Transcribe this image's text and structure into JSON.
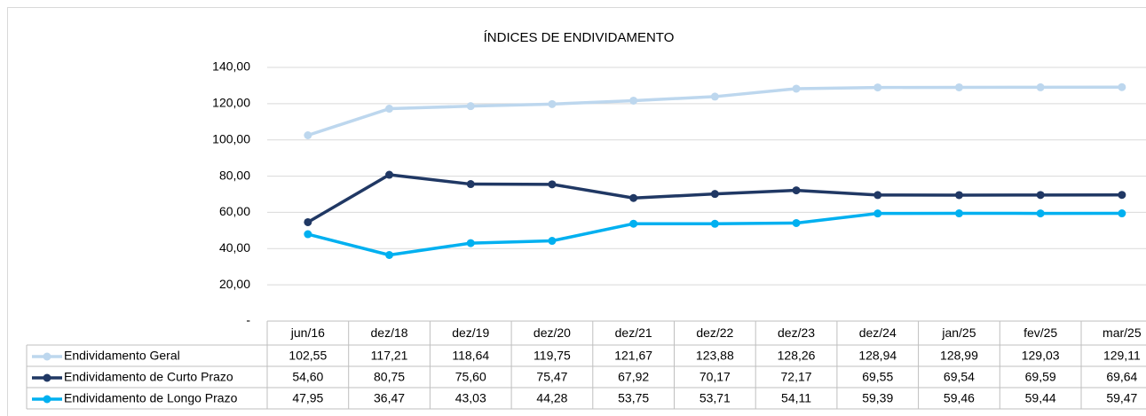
{
  "chart_data": {
    "type": "line",
    "title": "ÍNDICES DE ENDIVIDAMENTO",
    "categories": [
      "jun/16",
      "dez/18",
      "dez/19",
      "dez/20",
      "dez/21",
      "dez/22",
      "dez/23",
      "dez/24",
      "jan/25",
      "fev/25",
      "mar/25"
    ],
    "series": [
      {
        "name": "Endividamento Geral",
        "color": "#bdd7ee",
        "values": [
          102.55,
          117.21,
          118.64,
          119.75,
          121.67,
          123.88,
          128.26,
          128.94,
          128.99,
          129.03,
          129.11
        ],
        "value_labels": [
          "102,55",
          "117,21",
          "118,64",
          "119,75",
          "121,67",
          "123,88",
          "128,26",
          "128,94",
          "128,99",
          "129,03",
          "129,11"
        ]
      },
      {
        "name": "Endividamento de Curto Prazo",
        "color": "#203864",
        "values": [
          54.6,
          80.75,
          75.6,
          75.47,
          67.92,
          70.17,
          72.17,
          69.55,
          69.54,
          69.59,
          69.64
        ],
        "value_labels": [
          "54,60",
          "80,75",
          "75,60",
          "75,47",
          "67,92",
          "70,17",
          "72,17",
          "69,55",
          "69,54",
          "69,59",
          "69,64"
        ]
      },
      {
        "name": "Endividamento de Longo Prazo",
        "color": "#00b0f0",
        "values": [
          47.95,
          36.47,
          43.03,
          44.28,
          53.75,
          53.71,
          54.11,
          59.39,
          59.46,
          59.44,
          59.47
        ],
        "value_labels": [
          "47,95",
          "36,47",
          "43,03",
          "44,28",
          "53,75",
          "53,71",
          "54,11",
          "59,39",
          "59,46",
          "59,44",
          "59,47"
        ]
      }
    ],
    "ylim": [
      0,
      140
    ],
    "yticks": [
      {
        "value": 0,
        "label": "-"
      },
      {
        "value": 20,
        "label": "20,00"
      },
      {
        "value": 40,
        "label": "40,00"
      },
      {
        "value": 60,
        "label": "60,00"
      },
      {
        "value": 80,
        "label": "80,00"
      },
      {
        "value": 100,
        "label": "100,00"
      },
      {
        "value": 120,
        "label": "120,00"
      },
      {
        "value": 140,
        "label": "140,00"
      }
    ],
    "grid": true
  }
}
